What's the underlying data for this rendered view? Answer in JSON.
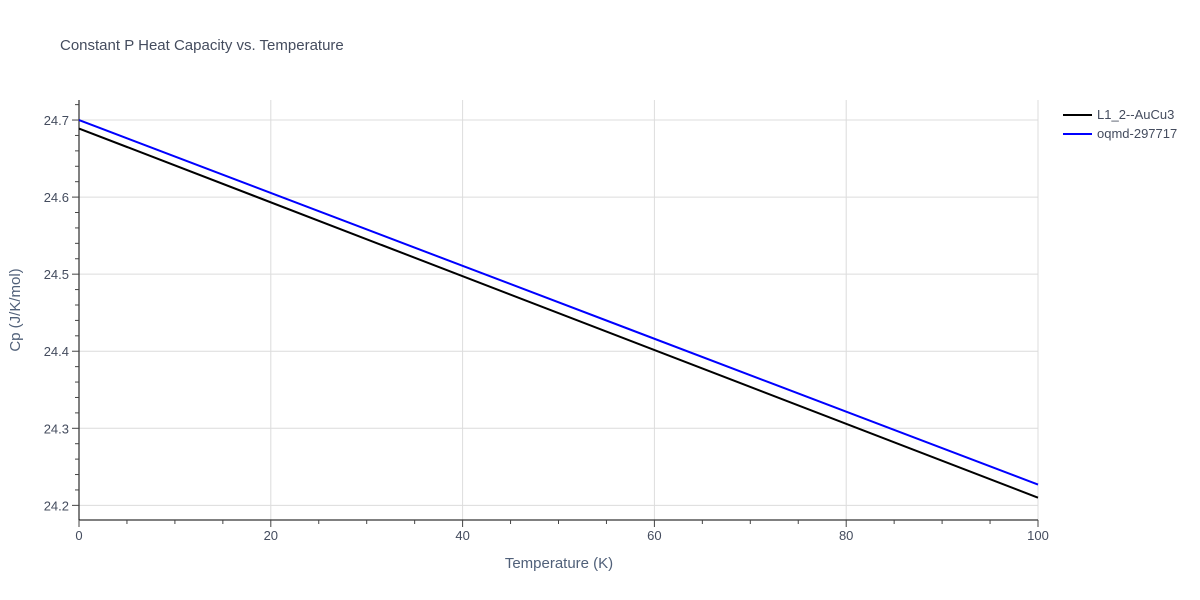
{
  "chart_data": {
    "type": "line",
    "title": "Constant P Heat Capacity vs. Temperature",
    "xlabel": "Temperature (K)",
    "ylabel": "Cp (J/K/mol)",
    "xlim": [
      0,
      100
    ],
    "ylim": [
      24.181,
      24.726
    ],
    "x_ticks": [
      0,
      20,
      40,
      60,
      80,
      100
    ],
    "y_ticks": [
      24.2,
      24.3,
      24.4,
      24.5,
      24.6,
      24.7
    ],
    "x_tick_labels": [
      "0",
      "20",
      "40",
      "60",
      "80",
      "100"
    ],
    "y_tick_labels": [
      "24.2",
      "24.3",
      "24.4",
      "24.5",
      "24.6",
      "24.7"
    ],
    "grid": true,
    "legend_position": "top-right",
    "series": [
      {
        "name": "L1_2--AuCu3",
        "color": "#000000",
        "x": [
          0,
          100
        ],
        "values": [
          24.689,
          24.21
        ]
      },
      {
        "name": "oqmd-297717",
        "color": "#0000ff",
        "x": [
          0,
          100
        ],
        "values": [
          24.7,
          24.227
        ]
      }
    ]
  }
}
